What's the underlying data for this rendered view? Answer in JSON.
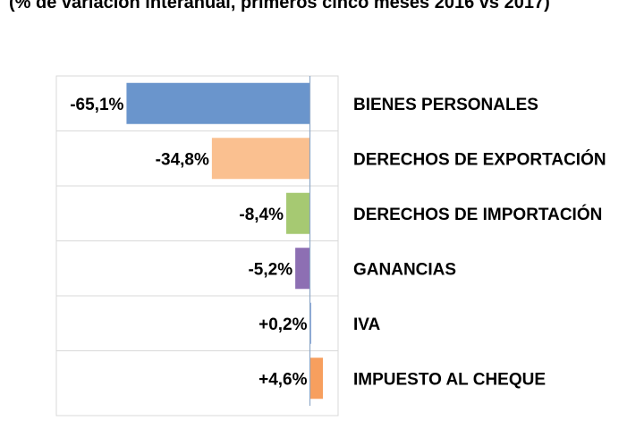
{
  "chart_data": {
    "type": "bar",
    "orientation": "horizontal",
    "title": "(% de variación interanual, primeros cinco meses 2016 vs 2017)",
    "categories": [
      "BIENES PERSONALES",
      "DERECHOS DE EXPORTACIÓN",
      "DERECHOS DE IMPORTACIÓN",
      "GANANCIAS",
      "IVA",
      "IMPUESTO AL CHEQUE"
    ],
    "values": [
      -65.1,
      -34.8,
      -8.4,
      -5.2,
      0.2,
      4.6
    ],
    "value_labels": [
      "-65,1%",
      "-34,8%",
      "-8,4%",
      "-5,2%",
      "+0,2%",
      "+4,6%"
    ],
    "colors": [
      "#6a95cc",
      "#fac090",
      "#a6c972",
      "#8d6fb3",
      "#8faadc",
      "#f79f5e"
    ],
    "xlim": [
      -90,
      10
    ],
    "grid": "horizontal-separators",
    "legend": "none"
  }
}
